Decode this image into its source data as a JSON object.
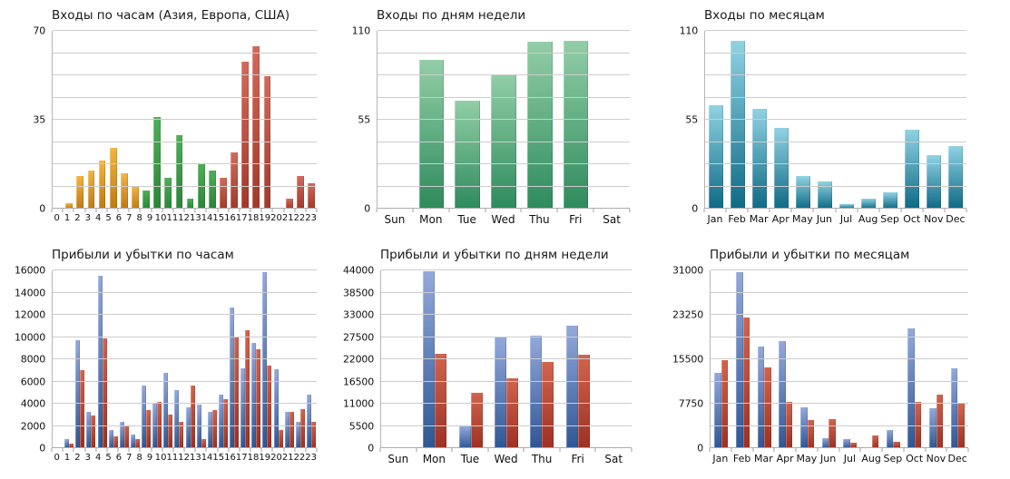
{
  "page": {
    "background": "#FFFFFF"
  },
  "colors": {
    "hour_asia": {
      "top": "#F3B542",
      "bottom": "#BF7A14"
    },
    "hour_europe": {
      "top": "#4FAF57",
      "bottom": "#2B8538"
    },
    "hour_usa": {
      "top": "#D26A5B",
      "bottom": "#A23929"
    },
    "weekday_green": {
      "top": "#92CEA7",
      "bottom": "#2E8B5C"
    },
    "month_teal": {
      "top": "#90D2E3",
      "bottom": "#0E6A85"
    },
    "profit_blue": {
      "top": "#93A9DC",
      "bottom": "#2F5694"
    },
    "loss_red": {
      "top": "#D2644E",
      "bottom": "#9D3123"
    },
    "gridline": "#CDCDCD",
    "axis": "#ABABAB"
  },
  "chart_data": [
    {
      "type": "bar",
      "title": "Входы по часам (Азия, Европа, США)",
      "ymax": 70,
      "grid_divisions": 8,
      "ylabels": [
        {
          "value": 0,
          "label": "0"
        },
        {
          "value": 35,
          "label": "35"
        },
        {
          "value": 70,
          "label": "70"
        }
      ],
      "categories": [
        "0",
        "1",
        "2",
        "3",
        "4",
        "5",
        "6",
        "7",
        "8",
        "9",
        "10",
        "11",
        "12",
        "13",
        "14",
        "15",
        "16",
        "17",
        "18",
        "19",
        "20",
        "21",
        "22",
        "23"
      ],
      "series": [
        {
          "name": "logins",
          "values": [
            0,
            2,
            13,
            15,
            19,
            24,
            14,
            9,
            7,
            36,
            12,
            29,
            4,
            18,
            15,
            12,
            22,
            58,
            64,
            52,
            0,
            4,
            13,
            10
          ],
          "color_keys": [
            "hour_asia",
            "hour_asia",
            "hour_asia",
            "hour_asia",
            "hour_asia",
            "hour_asia",
            "hour_asia",
            "hour_asia",
            "hour_europe",
            "hour_europe",
            "hour_europe",
            "hour_europe",
            "hour_europe",
            "hour_europe",
            "hour_europe",
            "hour_usa",
            "hour_usa",
            "hour_usa",
            "hour_usa",
            "hour_usa",
            "hour_usa",
            "hour_usa",
            "hour_usa",
            "hour_usa"
          ]
        }
      ]
    },
    {
      "type": "bar",
      "title": "Входы по дням недели",
      "ymax": 110,
      "grid_divisions": 8,
      "ylabels": [
        {
          "value": 0,
          "label": "0"
        },
        {
          "value": 55,
          "label": "55"
        },
        {
          "value": 110,
          "label": "110"
        }
      ],
      "categories": [
        "Sun",
        "Mon",
        "Tue",
        "Wed",
        "Thu",
        "Fri",
        "Sat"
      ],
      "series": [
        {
          "name": "logins",
          "values": [
            0,
            92,
            67,
            83,
            103,
            104,
            0
          ],
          "color_key": "weekday_green"
        }
      ]
    },
    {
      "type": "bar",
      "title": "Входы по месяцам",
      "ymax": 110,
      "grid_divisions": 8,
      "ylabels": [
        {
          "value": 0,
          "label": "0"
        },
        {
          "value": 55,
          "label": "55"
        },
        {
          "value": 110,
          "label": "110"
        }
      ],
      "categories": [
        "Jan",
        "Feb",
        "Mar",
        "Apr",
        "May",
        "Jun",
        "Jul",
        "Aug",
        "Sep",
        "Oct",
        "Nov",
        "Dec"
      ],
      "series": [
        {
          "name": "logins",
          "values": [
            64,
            104,
            62,
            50,
            20,
            17,
            3,
            6,
            10,
            49,
            33,
            39
          ],
          "color_key": "month_teal"
        }
      ]
    },
    {
      "type": "bar",
      "title": "Прибыли и убытки по часам",
      "ymax": 16000,
      "grid_divisions": 8,
      "ylabels": [
        {
          "value": 0,
          "label": "0"
        },
        {
          "value": 2000,
          "label": "2000"
        },
        {
          "value": 4000,
          "label": "4000"
        },
        {
          "value": 6000,
          "label": "6000"
        },
        {
          "value": 8000,
          "label": "8000"
        },
        {
          "value": 10000,
          "label": "10000"
        },
        {
          "value": 12000,
          "label": "12000"
        },
        {
          "value": 14000,
          "label": "14000"
        },
        {
          "value": 16000,
          "label": "16000"
        }
      ],
      "categories": [
        "0",
        "1",
        "2",
        "3",
        "4",
        "5",
        "6",
        "7",
        "8",
        "9",
        "10",
        "11",
        "12",
        "13",
        "14",
        "15",
        "16",
        "17",
        "18",
        "19",
        "20",
        "21",
        "22",
        "23"
      ],
      "series": [
        {
          "name": "profit",
          "values": [
            0,
            800,
            9700,
            3250,
            15500,
            1650,
            2400,
            1200,
            5600,
            4000,
            6800,
            5200,
            3650,
            3950,
            3250,
            4850,
            12650,
            7200,
            9500,
            15850,
            7100,
            3250,
            2400,
            4850
          ],
          "color_key": "profit_blue"
        },
        {
          "name": "loss",
          "values": [
            0,
            400,
            7000,
            2900,
            9900,
            1050,
            2050,
            800,
            3450,
            4200,
            3050,
            2400,
            5650,
            850,
            3450,
            4450,
            10050,
            10650,
            8900,
            7450,
            1650,
            3300,
            3500,
            2400
          ],
          "color_key": "loss_red"
        }
      ]
    },
    {
      "type": "bar",
      "title": "Прибыли и убытки по дням недели",
      "ymax": 44000,
      "grid_divisions": 8,
      "ylabels": [
        {
          "value": 0,
          "label": "0"
        },
        {
          "value": 5500,
          "label": "5500"
        },
        {
          "value": 11000,
          "label": "11000"
        },
        {
          "value": 16500,
          "label": "16500"
        },
        {
          "value": 22000,
          "label": "22000"
        },
        {
          "value": 27500,
          "label": "27500"
        },
        {
          "value": 33000,
          "label": "33000"
        },
        {
          "value": 38500,
          "label": "38500"
        },
        {
          "value": 44000,
          "label": "44000"
        }
      ],
      "categories": [
        "Sun",
        "Mon",
        "Tue",
        "Wed",
        "Thu",
        "Fri",
        "Sat"
      ],
      "series": [
        {
          "name": "profit",
          "values": [
            0,
            43700,
            5300,
            27500,
            27800,
            30250,
            0
          ],
          "color_key": "profit_blue"
        },
        {
          "name": "loss",
          "values": [
            0,
            23350,
            13800,
            17250,
            21350,
            23150,
            0
          ],
          "color_key": "loss_red"
        }
      ]
    },
    {
      "type": "bar",
      "title": "Прибыли и убытки по месяцам",
      "ymax": 31000,
      "grid_divisions": 8,
      "ylabels": [
        {
          "value": 0,
          "label": "0"
        },
        {
          "value": 7750,
          "label": "7750"
        },
        {
          "value": 15500,
          "label": "15500"
        },
        {
          "value": 23250,
          "label": "23250"
        },
        {
          "value": 31000,
          "label": "31000"
        }
      ],
      "categories": [
        "Jan",
        "Feb",
        "Mar",
        "Apr",
        "May",
        "Jun",
        "Jul",
        "Aug",
        "Sep",
        "Oct",
        "Nov",
        "Dec"
      ],
      "series": [
        {
          "name": "profit",
          "values": [
            13200,
            30700,
            17700,
            18700,
            7100,
            1700,
            1600,
            0,
            3200,
            20900,
            6900,
            13900
          ],
          "color_key": "profit_blue"
        },
        {
          "name": "loss",
          "values": [
            15300,
            22700,
            14100,
            8050,
            4900,
            5000,
            1000,
            2200,
            1100,
            8050,
            9300,
            7800
          ],
          "color_key": "loss_red"
        }
      ]
    }
  ]
}
